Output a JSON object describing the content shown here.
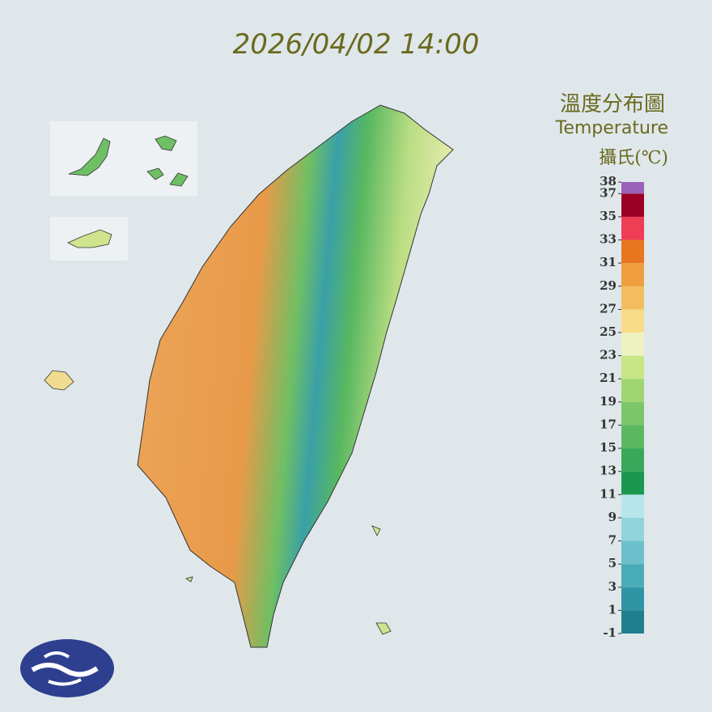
{
  "header": {
    "timestamp": "2026/04/02 14:00"
  },
  "legend": {
    "title": "溫度分布圖",
    "subtitle": "Temperature",
    "unit": "攝氏(℃)",
    "ticks": [
      -1,
      1,
      3,
      5,
      7,
      9,
      11,
      13,
      15,
      17,
      19,
      21,
      23,
      25,
      27,
      29,
      31,
      33,
      35,
      37,
      38
    ],
    "colors": [
      "#1f7f8e",
      "#2f95a4",
      "#4aabb8",
      "#6cc0cb",
      "#92d4dc",
      "#b6e6ec",
      "#1a9850",
      "#3aa85a",
      "#5cb860",
      "#7cc66a",
      "#a0d670",
      "#c8e684",
      "#eef2c0",
      "#f6dc86",
      "#f3bc5e",
      "#ee9e3c",
      "#e8761e",
      "#ee3d55",
      "#9b0024",
      "#9a62b6"
    ]
  }
}
